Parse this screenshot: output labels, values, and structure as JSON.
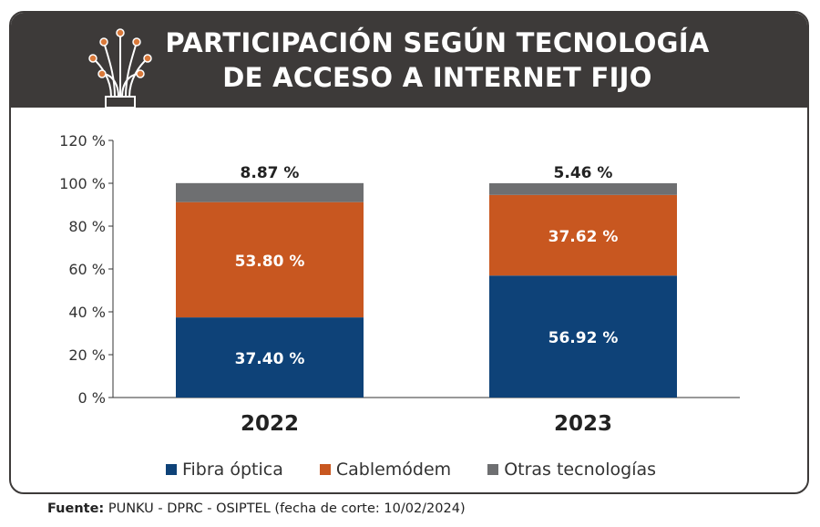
{
  "header": {
    "title_line1": "PARTICIPACIÓN SEGÚN TECNOLOGÍA",
    "title_line2": "DE ACCESO A INTERNET FIJO",
    "icon": "fiber-optic-icon"
  },
  "source": {
    "label": "Fuente:",
    "text": "PUNKU - DPRC - OSIPTEL (fecha de corte: 10/02/2024)"
  },
  "colors": {
    "header_bg": "#3d3a39",
    "fibra": "#0e4278",
    "cable": "#c85720",
    "otras": "#6e6f71",
    "icon_accent": "#d9793a"
  },
  "chart_data": {
    "type": "bar",
    "stacked": true,
    "categories": [
      "2022",
      "2023"
    ],
    "series": [
      {
        "name": "Fibra óptica",
        "values": [
          37.4,
          56.92
        ],
        "labels": [
          "37.40 %",
          "56.92 %"
        ]
      },
      {
        "name": "Cablemódem",
        "values": [
          53.8,
          37.62
        ],
        "labels": [
          "53.80 %",
          "37.62 %"
        ]
      },
      {
        "name": "Otras tecnologías",
        "values": [
          8.87,
          5.46
        ],
        "labels": [
          "8.87 %",
          "5.46 %"
        ]
      }
    ],
    "yticks": [
      "0 %",
      "20 %",
      "40 %",
      "60 %",
      "80 %",
      "100 %",
      "120 %"
    ],
    "ylim": [
      0,
      120
    ],
    "legend_position": "bottom",
    "grid": false
  }
}
